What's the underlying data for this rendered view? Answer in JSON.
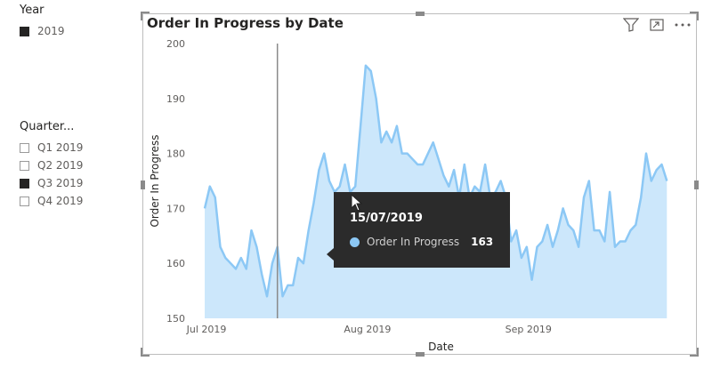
{
  "slicers": {
    "year": {
      "title": "Year",
      "items": [
        {
          "label": "2019",
          "checked": true
        }
      ]
    },
    "quarter": {
      "title": "Quarter...",
      "items": [
        {
          "label": "Q1 2019",
          "checked": false
        },
        {
          "label": "Q2 2019",
          "checked": false
        },
        {
          "label": "Q3 2019",
          "checked": true
        },
        {
          "label": "Q4 2019",
          "checked": false
        }
      ]
    }
  },
  "visual": {
    "icons": [
      "filter-icon",
      "focus-mode-icon",
      "more-options-icon"
    ]
  },
  "tooltip": {
    "date": "15/07/2019",
    "series_label": "Order In Progress",
    "value": "163"
  },
  "colors": {
    "line": "#8cc8f5",
    "area": "#cce7fb",
    "crosshair": "#8a8a8a"
  },
  "chart_data": {
    "type": "area",
    "title": "Order In Progress by Date",
    "xlabel": "Date",
    "ylabel": "Order In Progress",
    "ylim": [
      150,
      200
    ],
    "yticks": [
      150,
      160,
      170,
      180,
      190,
      200
    ],
    "xlim": [
      "2019-07-01",
      "2019-09-30"
    ],
    "xticks": [
      {
        "label": "Jul 2019",
        "date": "2019-07-01"
      },
      {
        "label": "Aug 2019",
        "date": "2019-08-01"
      },
      {
        "label": "Sep 2019",
        "date": "2019-09-01"
      }
    ],
    "grid": false,
    "highlight_date": "2019-07-15",
    "series": [
      {
        "x": [
          "2019-07-01",
          "2019-07-02",
          "2019-07-03",
          "2019-07-04",
          "2019-07-05",
          "2019-07-06",
          "2019-07-07",
          "2019-07-08",
          "2019-07-09",
          "2019-07-10",
          "2019-07-11",
          "2019-07-12",
          "2019-07-13",
          "2019-07-14",
          "2019-07-15",
          "2019-07-16",
          "2019-07-17",
          "2019-07-18",
          "2019-07-19",
          "2019-07-20",
          "2019-07-21",
          "2019-07-22",
          "2019-07-23",
          "2019-07-24",
          "2019-07-25",
          "2019-07-26",
          "2019-07-27",
          "2019-07-28",
          "2019-07-29",
          "2019-07-30",
          "2019-07-31",
          "2019-08-01",
          "2019-08-02",
          "2019-08-03",
          "2019-08-04",
          "2019-08-05",
          "2019-08-06",
          "2019-08-07",
          "2019-08-08",
          "2019-08-09",
          "2019-08-10",
          "2019-08-11",
          "2019-08-12",
          "2019-08-13",
          "2019-08-14",
          "2019-08-15",
          "2019-08-16",
          "2019-08-17",
          "2019-08-18",
          "2019-08-19",
          "2019-08-20",
          "2019-08-21",
          "2019-08-22",
          "2019-08-23",
          "2019-08-24",
          "2019-08-25",
          "2019-08-26",
          "2019-08-27",
          "2019-08-28",
          "2019-08-29",
          "2019-08-30",
          "2019-08-31",
          "2019-09-01",
          "2019-09-02",
          "2019-09-03",
          "2019-09-04",
          "2019-09-05",
          "2019-09-06",
          "2019-09-07",
          "2019-09-08",
          "2019-09-09",
          "2019-09-10",
          "2019-09-11",
          "2019-09-12",
          "2019-09-13",
          "2019-09-14",
          "2019-09-15",
          "2019-09-16",
          "2019-09-17",
          "2019-09-18",
          "2019-09-19",
          "2019-09-20",
          "2019-09-21",
          "2019-09-22",
          "2019-09-23",
          "2019-09-24",
          "2019-09-25",
          "2019-09-26",
          "2019-09-27",
          "2019-09-28"
        ],
        "values": [
          170,
          174,
          172,
          163,
          161,
          160,
          159,
          161,
          159,
          166,
          163,
          158,
          154,
          160,
          163,
          154,
          156,
          156,
          161,
          160,
          166,
          171,
          177,
          180,
          175,
          173,
          174,
          178,
          173,
          174,
          185,
          196,
          195,
          190,
          182,
          184,
          182,
          185,
          180,
          180,
          179,
          178,
          178,
          180,
          182,
          179,
          176,
          174,
          177,
          172,
          178,
          172,
          174,
          173,
          178,
          172,
          173,
          175,
          172,
          164,
          166,
          161,
          163,
          157,
          163,
          164,
          167,
          163,
          166,
          170,
          167,
          166,
          163,
          172,
          175,
          166,
          166,
          164,
          173,
          163,
          164,
          164,
          166,
          167,
          172,
          180,
          175,
          177,
          178,
          175
        ]
      }
    ]
  }
}
